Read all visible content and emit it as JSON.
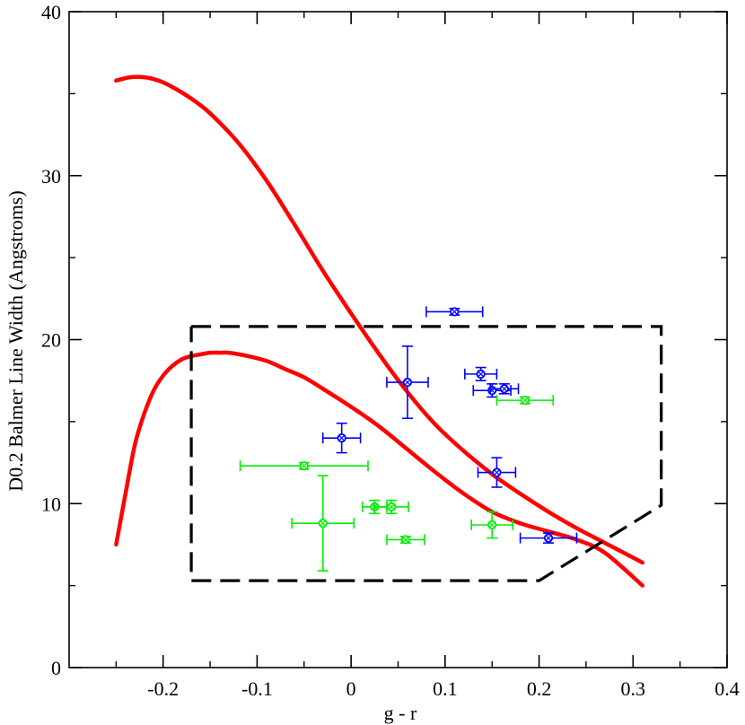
{
  "chart_data": {
    "type": "scatter",
    "title": "",
    "xlabel": "g - r",
    "ylabel": "D0.2 Balmer Line Width (Angstroms)",
    "xlim": [
      -0.3,
      0.4
    ],
    "ylim": [
      0,
      40
    ],
    "x_ticks": [
      -0.2,
      -0.1,
      0.0,
      0.1,
      0.2,
      0.3,
      0.4
    ],
    "x_tick_labels": [
      "-0.2",
      "-0.1",
      "0",
      "0.1",
      "0.2",
      "0.3",
      "0.4"
    ],
    "y_ticks": [
      0,
      10,
      20,
      30,
      40
    ],
    "y_tick_labels": [
      "0",
      "10",
      "20",
      "30",
      "40"
    ],
    "grid": false,
    "colors": {
      "curve": "#ff0000",
      "blue": "#0000ff",
      "green": "#00ee00",
      "box": "#000000"
    },
    "curves": [
      {
        "name": "upper model curve",
        "x": [
          -0.25,
          -0.235,
          -0.22,
          -0.205,
          -0.19,
          -0.17,
          -0.15,
          -0.12,
          -0.09,
          -0.06,
          -0.03,
          0.0,
          0.03,
          0.06,
          0.09,
          0.12,
          0.15,
          0.18,
          0.21,
          0.24,
          0.27,
          0.31
        ],
        "y": [
          35.8,
          36.0,
          36.0,
          35.8,
          35.4,
          34.7,
          33.8,
          32.0,
          29.7,
          27.0,
          24.2,
          21.6,
          19.1,
          16.8,
          14.8,
          13.2,
          11.8,
          10.6,
          9.5,
          8.5,
          7.6,
          6.4
        ]
      },
      {
        "name": "lower model curve",
        "x": [
          -0.25,
          -0.24,
          -0.23,
          -0.22,
          -0.21,
          -0.2,
          -0.19,
          -0.18,
          -0.17,
          -0.16,
          -0.15,
          -0.14,
          -0.13,
          -0.11,
          -0.09,
          -0.07,
          -0.05,
          -0.03,
          0.0,
          0.03,
          0.06,
          0.09,
          0.12,
          0.15,
          0.18,
          0.21,
          0.24,
          0.27,
          0.31
        ],
        "y": [
          7.5,
          10.6,
          13.6,
          15.5,
          16.9,
          17.8,
          18.4,
          18.8,
          19.0,
          19.1,
          19.2,
          19.2,
          19.2,
          19.0,
          18.7,
          18.2,
          17.7,
          17.0,
          15.9,
          14.7,
          13.3,
          11.9,
          10.6,
          9.5,
          8.8,
          8.3,
          7.8,
          7.0,
          5.0
        ]
      }
    ],
    "selection_box": {
      "x": [
        -0.17,
        0.33,
        0.33,
        0.2,
        -0.17,
        -0.17
      ],
      "y": [
        20.8,
        20.8,
        9.9,
        5.3,
        5.3,
        20.8
      ]
    },
    "series": [
      {
        "name": "blue",
        "points": [
          {
            "x": 0.11,
            "y": 21.7,
            "xerr": 0.03,
            "yerr": 0.2
          },
          {
            "x": 0.06,
            "y": 17.4,
            "xerr": 0.022,
            "yerr": 2.2
          },
          {
            "x": 0.138,
            "y": 17.9,
            "xerr": 0.017,
            "yerr": 0.4
          },
          {
            "x": 0.15,
            "y": 16.9,
            "xerr": 0.02,
            "yerr": 0.4
          },
          {
            "x": 0.163,
            "y": 17.0,
            "xerr": 0.015,
            "yerr": 0.3
          },
          {
            "x": -0.01,
            "y": 14.0,
            "xerr": 0.02,
            "yerr": 0.9
          },
          {
            "x": 0.155,
            "y": 11.9,
            "xerr": 0.02,
            "yerr": 0.9
          },
          {
            "x": 0.21,
            "y": 7.9,
            "xerr": 0.03,
            "yerr": 0.3
          }
        ]
      },
      {
        "name": "green",
        "points": [
          {
            "x": 0.185,
            "y": 16.3,
            "xerr": 0.03,
            "yerr": 0.2
          },
          {
            "x": -0.05,
            "y": 12.3,
            "xerr": 0.068,
            "yerr": 0.2
          },
          {
            "x": -0.03,
            "y": 8.8,
            "xerr": 0.033,
            "yerr": 2.9
          },
          {
            "x": 0.025,
            "y": 9.8,
            "xerr": 0.013,
            "yerr": 0.4
          },
          {
            "x": 0.043,
            "y": 9.8,
            "xerr": 0.018,
            "yerr": 0.4
          },
          {
            "x": 0.058,
            "y": 7.8,
            "xerr": 0.02,
            "yerr": 0.2
          },
          {
            "x": 0.15,
            "y": 8.7,
            "xerr": 0.022,
            "yerr": 0.8
          }
        ]
      }
    ]
  }
}
